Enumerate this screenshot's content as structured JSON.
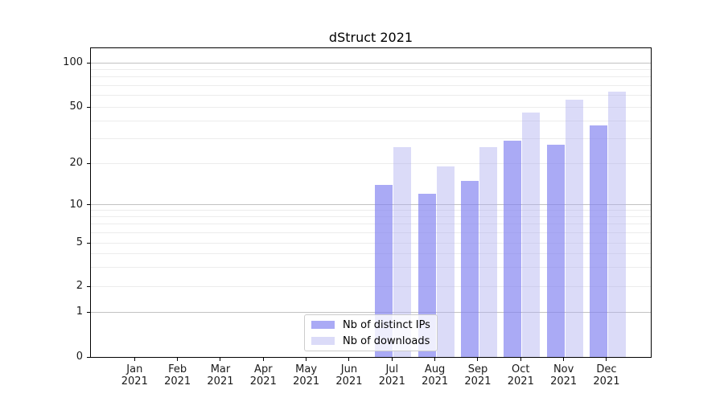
{
  "title": "dStruct 2021",
  "colors": {
    "ips_bar": "rgba(130,130,240,0.68)",
    "downloads_bar": "rgba(175,175,240,0.45)",
    "grid_major": "#c2c2c2",
    "grid_minor": "#ececec",
    "axis": "#000000",
    "legend_border": "#cccccc",
    "legend_bg": "rgba(255,255,255,0.8)"
  },
  "chart_data": {
    "type": "bar",
    "title": "dStruct 2021",
    "categories": [
      "Jan 2021",
      "Feb 2021",
      "Mar 2021",
      "Apr 2021",
      "May 2021",
      "Jun 2021",
      "Jul 2021",
      "Aug 2021",
      "Sep 2021",
      "Oct 2021",
      "Nov 2021",
      "Dec 2021"
    ],
    "series": [
      {
        "name": "Nb of distinct IPs",
        "color_key": "ips_bar",
        "values": [
          0,
          0,
          0,
          0,
          0,
          0,
          14,
          12,
          15,
          29,
          27,
          37
        ]
      },
      {
        "name": "Nb of downloads",
        "color_key": "downloads_bar",
        "values": [
          0,
          0,
          0,
          0,
          0,
          0,
          26,
          19,
          26,
          46,
          56,
          64
        ]
      }
    ],
    "xlabel": "",
    "ylabel": "",
    "yscale": "log",
    "yticks": [
      0,
      1,
      2,
      5,
      10,
      20,
      50,
      100
    ],
    "ylim": [
      0,
      130
    ],
    "grid": true,
    "legend_position": "lower center"
  }
}
